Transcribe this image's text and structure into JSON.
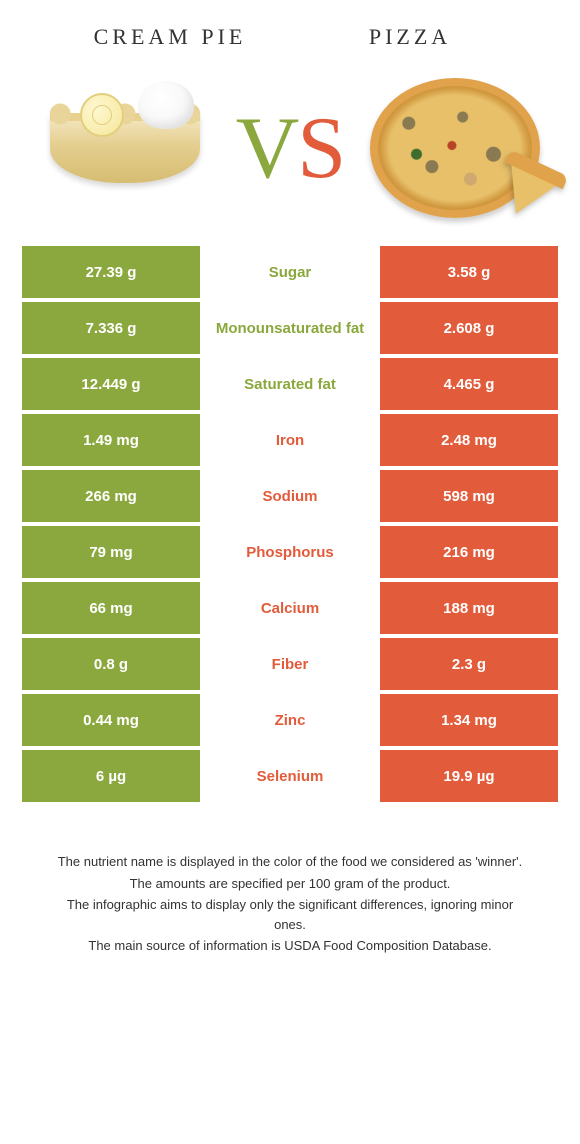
{
  "colors": {
    "left": "#8aa83d",
    "right": "#e25b3a",
    "text": "#333333",
    "bg": "#ffffff"
  },
  "header": {
    "left_title": "CREAM PIE",
    "right_title": "PIZZA",
    "vs_v": "V",
    "vs_s": "S"
  },
  "rows": [
    {
      "left": "27.39 g",
      "label": "Sugar",
      "right": "3.58 g",
      "winner": "left"
    },
    {
      "left": "7.336 g",
      "label": "Monounsaturated fat",
      "right": "2.608 g",
      "winner": "left"
    },
    {
      "left": "12.449 g",
      "label": "Saturated fat",
      "right": "4.465 g",
      "winner": "left"
    },
    {
      "left": "1.49 mg",
      "label": "Iron",
      "right": "2.48 mg",
      "winner": "right"
    },
    {
      "left": "266 mg",
      "label": "Sodium",
      "right": "598 mg",
      "winner": "right"
    },
    {
      "left": "79 mg",
      "label": "Phosphorus",
      "right": "216 mg",
      "winner": "right"
    },
    {
      "left": "66 mg",
      "label": "Calcium",
      "right": "188 mg",
      "winner": "right"
    },
    {
      "left": "0.8 g",
      "label": "Fiber",
      "right": "2.3 g",
      "winner": "right"
    },
    {
      "left": "0.44 mg",
      "label": "Zinc",
      "right": "1.34 mg",
      "winner": "right"
    },
    {
      "left": "6 µg",
      "label": "Selenium",
      "right": "19.9 µg",
      "winner": "right"
    }
  ],
  "footnotes": [
    "The nutrient name is displayed in the color of the food we considered as 'winner'.",
    "The amounts are specified per 100 gram of the product.",
    "The infographic aims to display only the significant differences, ignoring minor ones.",
    "The main source of information is USDA Food Composition Database."
  ]
}
